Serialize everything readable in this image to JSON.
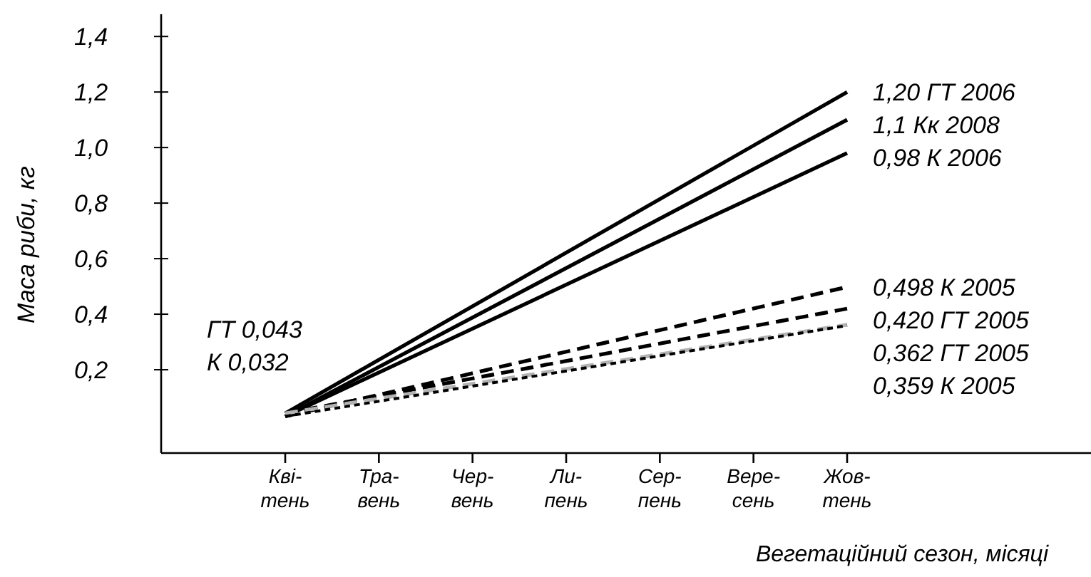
{
  "chart_data": {
    "type": "line",
    "xlabel": "Вегетаційний сезон, місяці",
    "ylabel": "Маса риби, кг",
    "categories": [
      "Кві-\nтень",
      "Тра-\nвень",
      "Чер-\nвень",
      "Ли-\nпень",
      "Сер-\nпень",
      "Вере-\nсень",
      "Жов-\nтень"
    ],
    "ylim": [
      -0.1,
      1.48
    ],
    "yticks": [
      {
        "value": 0.2,
        "label": "0,2"
      },
      {
        "value": 0.4,
        "label": "0,4"
      },
      {
        "value": 0.6,
        "label": "0,6"
      },
      {
        "value": 0.8,
        "label": "0,8"
      },
      {
        "value": 1.0,
        "label": "1,0"
      },
      {
        "value": 1.2,
        "label": "1,2"
      },
      {
        "value": 1.4,
        "label": "1,4"
      }
    ],
    "series": [
      {
        "name": "ГТ 2006",
        "color": "#000000",
        "line_style": "solid",
        "values": [
          0.043,
          null,
          null,
          null,
          null,
          null,
          1.2
        ],
        "value_labels": [
          null,
          null,
          null,
          null,
          null,
          null,
          "1,20"
        ]
      },
      {
        "name": "Кк 2008",
        "color": "#000000",
        "line_style": "solid",
        "values": [
          0.032,
          null,
          null,
          null,
          null,
          null,
          1.1
        ],
        "value_labels": [
          null,
          null,
          null,
          null,
          null,
          null,
          "1,1"
        ]
      },
      {
        "name": "К 2006",
        "color": "#000000",
        "line_style": "solid",
        "values": [
          0.032,
          null,
          null,
          null,
          null,
          null,
          0.98
        ],
        "value_labels": [
          null,
          null,
          null,
          null,
          null,
          null,
          "0,98"
        ]
      },
      {
        "name": "К 2005",
        "color": "#000000",
        "line_style": "dashed",
        "values": [
          0.032,
          null,
          null,
          null,
          null,
          null,
          0.498
        ],
        "value_labels": [
          null,
          null,
          null,
          null,
          null,
          null,
          "0,498"
        ]
      },
      {
        "name": "ГТ 2005",
        "color": "#000000",
        "line_style": "dashed",
        "values": [
          0.043,
          null,
          null,
          null,
          null,
          null,
          0.42
        ],
        "value_labels": [
          null,
          null,
          null,
          null,
          null,
          null,
          "0,420"
        ]
      },
      {
        "name": "ГТ 2005",
        "color": "#b3b3b3",
        "line_style": "dashed",
        "values": [
          0.043,
          null,
          null,
          null,
          null,
          null,
          0.362
        ],
        "value_labels": [
          null,
          null,
          null,
          null,
          null,
          null,
          "0,362"
        ]
      },
      {
        "name": "К 2005",
        "color": "#000000",
        "line_style": "dotted",
        "values": [
          0.032,
          null,
          null,
          null,
          null,
          null,
          0.359
        ],
        "value_labels": [
          null,
          null,
          null,
          null,
          null,
          null,
          "0,359"
        ]
      }
    ],
    "annotations": [
      "ГТ 0,043",
      "К 0,032"
    ]
  }
}
